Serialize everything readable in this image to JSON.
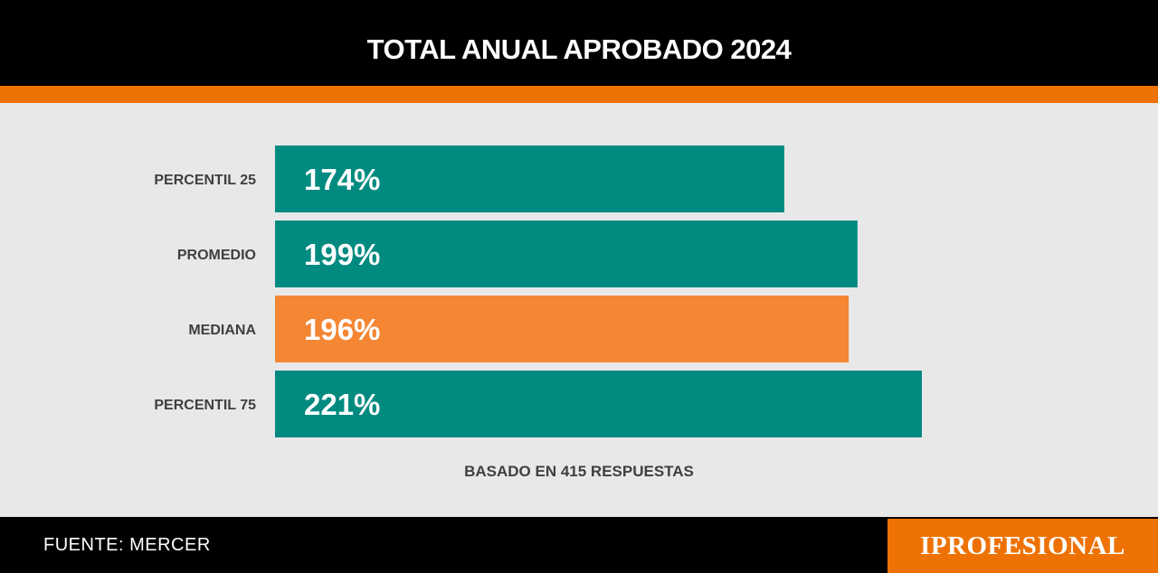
{
  "header": {
    "title": "TOTAL ANUAL APROBADO 2024"
  },
  "chart_data": {
    "type": "bar",
    "orientation": "horizontal",
    "title": "TOTAL ANUAL APROBADO 2024",
    "categories": [
      "PERCENTIL 25",
      "PROMEDIO",
      "MEDIANA",
      "PERCENTIL 75"
    ],
    "values": [
      174,
      199,
      196,
      221
    ],
    "value_labels": [
      "174%",
      "199%",
      "196%",
      "221%"
    ],
    "unit": "%",
    "bar_colors": [
      "#008a80",
      "#008a80",
      "#f48634",
      "#008a80"
    ],
    "xlim": [
      0,
      221
    ],
    "grid": false,
    "legend": "none"
  },
  "note": "BASADO EN 415 RESPUESTAS",
  "footer": {
    "source": "FUENTE: MERCER",
    "brand": "IPROFESIONAL"
  },
  "colors": {
    "header_bg": "#000000",
    "accent": "#ee7203",
    "background": "#e8e8e9",
    "bar_primary": "#008a80",
    "bar_highlight": "#f48634"
  }
}
